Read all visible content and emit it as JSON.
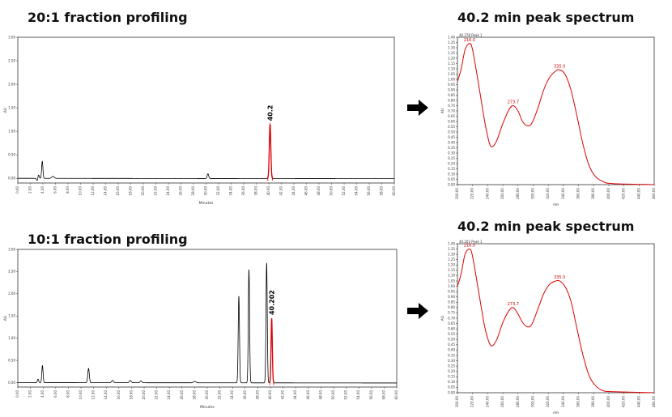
{
  "colors": {
    "chromatogram": "#000000",
    "highlight": "#dd0000",
    "spectrum": "#dd0000",
    "frame": "#333333"
  },
  "icons": {
    "arrow": "arrow-right-icon"
  },
  "chart_data": [
    {
      "id": "chrom1",
      "type": "line",
      "title": "20:1 fraction profiling",
      "xlabel": "Minutes",
      "ylabel": "AU",
      "xlim": [
        0,
        60
      ],
      "ylim": [
        -0.1,
        3.0
      ],
      "xticks": [
        "0.00",
        "2.00",
        "4.00",
        "6.00",
        "8.00",
        "10.00",
        "12.00",
        "14.00",
        "16.00",
        "18.00",
        "20.00",
        "22.00",
        "24.00",
        "26.00",
        "28.00",
        "30.00",
        "32.00",
        "34.00",
        "36.00",
        "38.00",
        "40.00",
        "42.00",
        "44.00",
        "46.00",
        "48.00",
        "50.00",
        "52.00",
        "54.00",
        "56.00",
        "58.00",
        "60.00"
      ],
      "yticks": [
        "0.00",
        "0.50",
        "1.00",
        "1.50",
        "2.00",
        "2.50",
        "3.00"
      ],
      "annotation": "40.2",
      "baseline": 0.0,
      "peaks": [
        {
          "t": 3.1,
          "h": -0.05,
          "w": 0.12
        },
        {
          "t": 3.3,
          "h": 0.08,
          "w": 0.1
        },
        {
          "t": 3.9,
          "h": 0.36,
          "w": 0.1
        },
        {
          "t": 5.6,
          "h": 0.04,
          "w": 0.2
        },
        {
          "t": 30.3,
          "h": 0.1,
          "w": 0.12
        },
        {
          "t": 40.2,
          "h": 1.15,
          "w": 0.12,
          "highlight": true
        }
      ]
    },
    {
      "id": "chrom2",
      "type": "line",
      "title": "10:1 fraction profiling",
      "xlabel": "Minutes",
      "ylabel": "AU",
      "xlim": [
        0,
        60
      ],
      "ylim": [
        -0.1,
        3.0
      ],
      "xticks": [
        "0.00",
        "2.00",
        "4.00",
        "6.00",
        "8.00",
        "10.00",
        "12.00",
        "14.00",
        "16.00",
        "18.00",
        "20.00",
        "22.00",
        "24.00",
        "26.00",
        "28.00",
        "30.00",
        "32.00",
        "34.00",
        "36.00",
        "38.00",
        "40.00",
        "42.00",
        "44.00",
        "46.00",
        "48.00",
        "50.00",
        "52.00",
        "54.00",
        "56.00",
        "58.00",
        "60.00"
      ],
      "yticks": [
        "0.00",
        "0.50",
        "1.00",
        "1.50",
        "2.00",
        "2.50",
        "3.00"
      ],
      "annotation": "40.202",
      "baseline": 0.0,
      "peaks": [
        {
          "t": 3.2,
          "h": 0.08,
          "w": 0.1
        },
        {
          "t": 3.9,
          "h": 0.38,
          "w": 0.1
        },
        {
          "t": 11.2,
          "h": 0.32,
          "w": 0.12
        },
        {
          "t": 15.0,
          "h": 0.05,
          "w": 0.15
        },
        {
          "t": 17.8,
          "h": 0.05,
          "w": 0.15
        },
        {
          "t": 19.5,
          "h": 0.04,
          "w": 0.15
        },
        {
          "t": 28.0,
          "h": 0.03,
          "w": 0.2
        },
        {
          "t": 35.0,
          "h": 1.95,
          "w": 0.1
        },
        {
          "t": 36.6,
          "h": 2.55,
          "w": 0.1
        },
        {
          "t": 39.4,
          "h": 2.7,
          "w": 0.1
        },
        {
          "t": 40.2,
          "h": 1.45,
          "w": 0.1,
          "highlight": true
        }
      ]
    },
    {
      "id": "spec1",
      "type": "line",
      "title": "40.2 min peak spectrum",
      "corner_label": "40.278 Peak 1",
      "xlabel": "nm",
      "ylabel": "AU",
      "xlim": [
        200,
        460
      ],
      "ylim": [
        0,
        1.4
      ],
      "xticks": [
        "200.00",
        "220.00",
        "240.00",
        "260.00",
        "280.00",
        "300.00",
        "320.00",
        "340.00",
        "360.00",
        "380.00",
        "400.00",
        "420.00",
        "440.00",
        "460.00"
      ],
      "yticks": [
        "0.00",
        "0.05",
        "0.10",
        "0.15",
        "0.20",
        "0.25",
        "0.30",
        "0.35",
        "0.40",
        "0.45",
        "0.50",
        "0.55",
        "0.60",
        "0.65",
        "0.70",
        "0.75",
        "0.80",
        "0.85",
        "0.90",
        "0.95",
        "1.00",
        "1.05",
        "1.10",
        "1.15",
        "1.20",
        "1.25",
        "1.30",
        "1.35",
        "1.40"
      ],
      "peak_labels": [
        {
          "x": 216.0,
          "y": 1.34,
          "text": "216.0"
        },
        {
          "x": 273.7,
          "y": 0.75,
          "text": "273.7"
        },
        {
          "x": 335.0,
          "y": 1.09,
          "text": "335.0"
        }
      ],
      "points": [
        [
          200,
          0.98
        ],
        [
          205,
          1.1
        ],
        [
          210,
          1.28
        ],
        [
          216,
          1.34
        ],
        [
          220,
          1.28
        ],
        [
          228,
          0.95
        ],
        [
          236,
          0.6
        ],
        [
          242,
          0.4
        ],
        [
          246,
          0.36
        ],
        [
          252,
          0.42
        ],
        [
          260,
          0.58
        ],
        [
          268,
          0.71
        ],
        [
          273.7,
          0.75
        ],
        [
          280,
          0.7
        ],
        [
          286,
          0.6
        ],
        [
          292,
          0.56
        ],
        [
          298,
          0.58
        ],
        [
          306,
          0.72
        ],
        [
          314,
          0.9
        ],
        [
          322,
          1.02
        ],
        [
          330,
          1.08
        ],
        [
          335,
          1.09
        ],
        [
          342,
          1.05
        ],
        [
          350,
          0.9
        ],
        [
          358,
          0.65
        ],
        [
          366,
          0.38
        ],
        [
          374,
          0.18
        ],
        [
          382,
          0.08
        ],
        [
          392,
          0.03
        ],
        [
          405,
          0.01
        ],
        [
          460,
          0.0
        ]
      ]
    },
    {
      "id": "spec2",
      "type": "line",
      "title": "40.2 min peak spectrum",
      "corner_label": "40.202 Peak 1",
      "xlabel": "nm",
      "ylabel": "AU",
      "xlim": [
        200,
        460
      ],
      "ylim": [
        0,
        1.4
      ],
      "xticks": [
        "200.00",
        "220.00",
        "240.00",
        "260.00",
        "280.00",
        "300.00",
        "320.00",
        "340.00",
        "360.00",
        "380.00",
        "400.00",
        "420.00",
        "440.00",
        "460.00"
      ],
      "yticks": [
        "0.00",
        "0.05",
        "0.10",
        "0.15",
        "0.20",
        "0.25",
        "0.30",
        "0.35",
        "0.40",
        "0.45",
        "0.50",
        "0.55",
        "0.60",
        "0.65",
        "0.70",
        "0.75",
        "0.80",
        "0.85",
        "0.90",
        "0.95",
        "1.00",
        "1.05",
        "1.10",
        "1.15",
        "1.20",
        "1.25",
        "1.30",
        "1.35",
        "1.40"
      ],
      "peak_labels": [
        {
          "x": 216.0,
          "y": 1.35,
          "text": "216.0"
        },
        {
          "x": 273.7,
          "y": 0.8,
          "text": "273.7"
        },
        {
          "x": 335.0,
          "y": 1.05,
          "text": "335.0"
        }
      ],
      "points": [
        [
          200,
          1.0
        ],
        [
          205,
          1.12
        ],
        [
          210,
          1.3
        ],
        [
          216,
          1.35
        ],
        [
          220,
          1.28
        ],
        [
          228,
          0.95
        ],
        [
          236,
          0.62
        ],
        [
          242,
          0.47
        ],
        [
          246,
          0.44
        ],
        [
          252,
          0.5
        ],
        [
          260,
          0.66
        ],
        [
          268,
          0.77
        ],
        [
          273.7,
          0.8
        ],
        [
          280,
          0.74
        ],
        [
          286,
          0.66
        ],
        [
          292,
          0.62
        ],
        [
          298,
          0.64
        ],
        [
          306,
          0.78
        ],
        [
          314,
          0.93
        ],
        [
          322,
          1.02
        ],
        [
          330,
          1.05
        ],
        [
          335,
          1.05
        ],
        [
          342,
          1.0
        ],
        [
          350,
          0.86
        ],
        [
          358,
          0.6
        ],
        [
          366,
          0.35
        ],
        [
          374,
          0.16
        ],
        [
          382,
          0.07
        ],
        [
          392,
          0.02
        ],
        [
          405,
          0.01
        ],
        [
          460,
          0.0
        ]
      ]
    }
  ]
}
